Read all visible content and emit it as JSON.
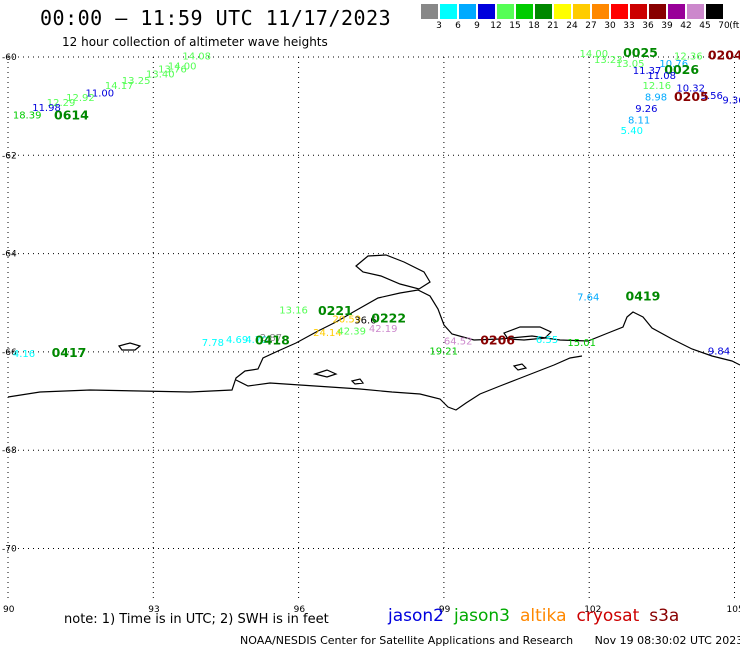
{
  "header": {
    "title": "00:00 — 11:59 UTC 11/17/2023",
    "subtitle": "12 hour collection of altimeter wave heights"
  },
  "legend": {
    "unit": "(ft)",
    "bins": [
      {
        "label": "3",
        "color": "#888888"
      },
      {
        "label": "6",
        "color": "#00ffff"
      },
      {
        "label": "9",
        "color": "#00aaff"
      },
      {
        "label": "12",
        "color": "#0000dd"
      },
      {
        "label": "15",
        "color": "#55ff55"
      },
      {
        "label": "18",
        "color": "#00cc00"
      },
      {
        "label": "21",
        "color": "#008800"
      },
      {
        "label": "24",
        "color": "#ffff00"
      },
      {
        "label": "27",
        "color": "#ffcc00"
      },
      {
        "label": "30",
        "color": "#ff8800"
      },
      {
        "label": "33",
        "color": "#ff0000"
      },
      {
        "label": "36",
        "color": "#cc0000"
      },
      {
        "label": "39",
        "color": "#880000"
      },
      {
        "label": "42",
        "color": "#990099"
      },
      {
        "label": "45",
        "color": "#cc88cc"
      },
      {
        "label": "70",
        "color": "#000000"
      }
    ]
  },
  "axes": {
    "lat_labels": [
      "-60",
      "-62",
      "-64",
      "-66",
      "-68",
      "-70"
    ],
    "lon_labels": [
      "90",
      "93",
      "96",
      "99",
      "102",
      "105"
    ]
  },
  "wave_labels": [
    {
      "text": "14.08",
      "lon": 93.6,
      "lat": -60.05,
      "color": "#55ff55"
    },
    {
      "text": "14.00",
      "lon": 93.3,
      "lat": -60.25,
      "color": "#55ff55"
    },
    {
      "text": "13.76",
      "lon": 93.1,
      "lat": -60.32,
      "color": "#55ff55"
    },
    {
      "text": "13.40",
      "lon": 92.85,
      "lat": -60.42,
      "color": "#55ff55"
    },
    {
      "text": "13.25",
      "lon": 92.35,
      "lat": -60.55,
      "color": "#55ff55"
    },
    {
      "text": "14.17",
      "lon": 92.0,
      "lat": -60.65,
      "color": "#55ff55"
    },
    {
      "text": "11.00",
      "lon": 91.6,
      "lat": -60.8,
      "color": "#0000dd"
    },
    {
      "text": "12.92",
      "lon": 91.2,
      "lat": -60.9,
      "color": "#55ff55"
    },
    {
      "text": "12.29",
      "lon": 90.8,
      "lat": -61.0,
      "color": "#55ff55"
    },
    {
      "text": "11.98",
      "lon": 90.5,
      "lat": -61.1,
      "color": "#0000dd"
    },
    {
      "text": "18.39",
      "lon": 90.1,
      "lat": -61.25,
      "color": "#00cc00"
    },
    {
      "text": "0614",
      "lon": 90.95,
      "lat": -61.27,
      "color": "#008800",
      "big": true
    },
    {
      "text": "14.00",
      "lon": 101.8,
      "lat": -60.0,
      "color": "#55ff55"
    },
    {
      "text": "0025",
      "lon": 102.7,
      "lat": -60.0,
      "color": "#008800",
      "big": true
    },
    {
      "text": "12.36",
      "lon": 103.75,
      "lat": -60.05,
      "color": "#55ff55"
    },
    {
      "text": "0204",
      "lon": 104.45,
      "lat": -60.05,
      "color": "#880000",
      "big": true
    },
    {
      "text": "13.23",
      "lon": 102.1,
      "lat": -60.12,
      "color": "#55ff55"
    },
    {
      "text": "13.05",
      "lon": 102.55,
      "lat": -60.2,
      "color": "#55ff55"
    },
    {
      "text": "10.76",
      "lon": 103.45,
      "lat": -60.2,
      "color": "#00aaff"
    },
    {
      "text": "11.37",
      "lon": 102.9,
      "lat": -60.35,
      "color": "#0000dd"
    },
    {
      "text": "0026",
      "lon": 103.55,
      "lat": -60.35,
      "color": "#008800",
      "big": true
    },
    {
      "text": "11.08",
      "lon": 103.2,
      "lat": -60.45,
      "color": "#0000dd"
    },
    {
      "text": "12.16",
      "lon": 103.1,
      "lat": -60.65,
      "color": "#55ff55"
    },
    {
      "text": "10.32",
      "lon": 103.8,
      "lat": -60.7,
      "color": "#0000dd"
    },
    {
      "text": "8.98",
      "lon": 103.15,
      "lat": -60.88,
      "color": "#00aaff"
    },
    {
      "text": "9.56",
      "lon": 104.3,
      "lat": -60.85,
      "color": "#0000dd"
    },
    {
      "text": "0205",
      "lon": 103.75,
      "lat": -60.9,
      "color": "#880000",
      "big": true
    },
    {
      "text": "9.36",
      "lon": 104.75,
      "lat": -60.95,
      "color": "#0000dd"
    },
    {
      "text": "9.26",
      "lon": 102.95,
      "lat": -61.12,
      "color": "#0000dd"
    },
    {
      "text": "8.11",
      "lon": 102.8,
      "lat": -61.35,
      "color": "#00aaff"
    },
    {
      "text": "5.40",
      "lon": 102.65,
      "lat": -61.57,
      "color": "#00ffff"
    },
    {
      "text": "13.16",
      "lon": 95.6,
      "lat": -65.22,
      "color": "#55ff55"
    },
    {
      "text": "0221",
      "lon": 96.4,
      "lat": -65.25,
      "color": "#008800",
      "big": true
    },
    {
      "text": "20.59",
      "lon": 96.7,
      "lat": -65.4,
      "color": "#ffcc00"
    },
    {
      "text": "36.6",
      "lon": 97.15,
      "lat": -65.42,
      "color": "#000000"
    },
    {
      "text": "0222",
      "lon": 97.5,
      "lat": -65.4,
      "color": "#008800",
      "big": true
    },
    {
      "text": "24.14",
      "lon": 96.3,
      "lat": -65.68,
      "color": "#ffcc00"
    },
    {
      "text": "42.39",
      "lon": 96.8,
      "lat": -65.65,
      "color": "#55ff55"
    },
    {
      "text": "42.19",
      "lon": 97.45,
      "lat": -65.6,
      "color": "#cc88cc"
    },
    {
      "text": "7.78",
      "lon": 94.0,
      "lat": -65.88,
      "color": "#00ffff"
    },
    {
      "text": "4.69",
      "lon": 94.5,
      "lat": -65.82,
      "color": "#00ffff"
    },
    {
      "text": "4.70",
      "lon": 94.9,
      "lat": -65.82,
      "color": "#00ffff"
    },
    {
      "text": "2.87",
      "lon": 95.2,
      "lat": -65.78,
      "color": "#888888"
    },
    {
      "text": "0418",
      "lon": 95.1,
      "lat": -65.85,
      "color": "#008800",
      "big": true
    },
    {
      "text": "4.16",
      "lon": 90.1,
      "lat": -66.1,
      "color": "#00ffff"
    },
    {
      "text": "0417",
      "lon": 90.9,
      "lat": -66.1,
      "color": "#008800",
      "big": true
    },
    {
      "text": "7.64",
      "lon": 101.75,
      "lat": -64.95,
      "color": "#00aaff"
    },
    {
      "text": "0419",
      "lon": 102.75,
      "lat": -64.95,
      "color": "#008800",
      "big": true
    },
    {
      "text": "64.52",
      "lon": 99.0,
      "lat": -65.85,
      "color": "#cc88cc"
    },
    {
      "text": "0206",
      "lon": 99.75,
      "lat": -65.85,
      "color": "#880000",
      "big": true
    },
    {
      "text": "6.55",
      "lon": 100.9,
      "lat": -65.82,
      "color": "#00ffff"
    },
    {
      "text": "15.01",
      "lon": 101.55,
      "lat": -65.88,
      "color": "#00cc00"
    },
    {
      "text": "19.21",
      "lon": 98.7,
      "lat": -66.05,
      "color": "#00cc00"
    },
    {
      "text": "9.84",
      "lon": 104.45,
      "lat": -66.05,
      "color": "#0000dd"
    }
  ],
  "note": "note: 1) Time is in UTC; 2) SWH is in feet",
  "satellites": [
    {
      "name": "jason2",
      "color": "#0000dd"
    },
    {
      "name": "jason3",
      "color": "#00aa00"
    },
    {
      "name": "altika",
      "color": "#ff8800"
    },
    {
      "name": "cryosat",
      "color": "#cc0000"
    },
    {
      "name": "s3a",
      "color": "#880000"
    }
  ],
  "footer": {
    "credit": "NOAA/NESDIS Center for Satellite Applications and Research",
    "timestamp": "Nov 19 08:30:02 UTC 2023"
  }
}
